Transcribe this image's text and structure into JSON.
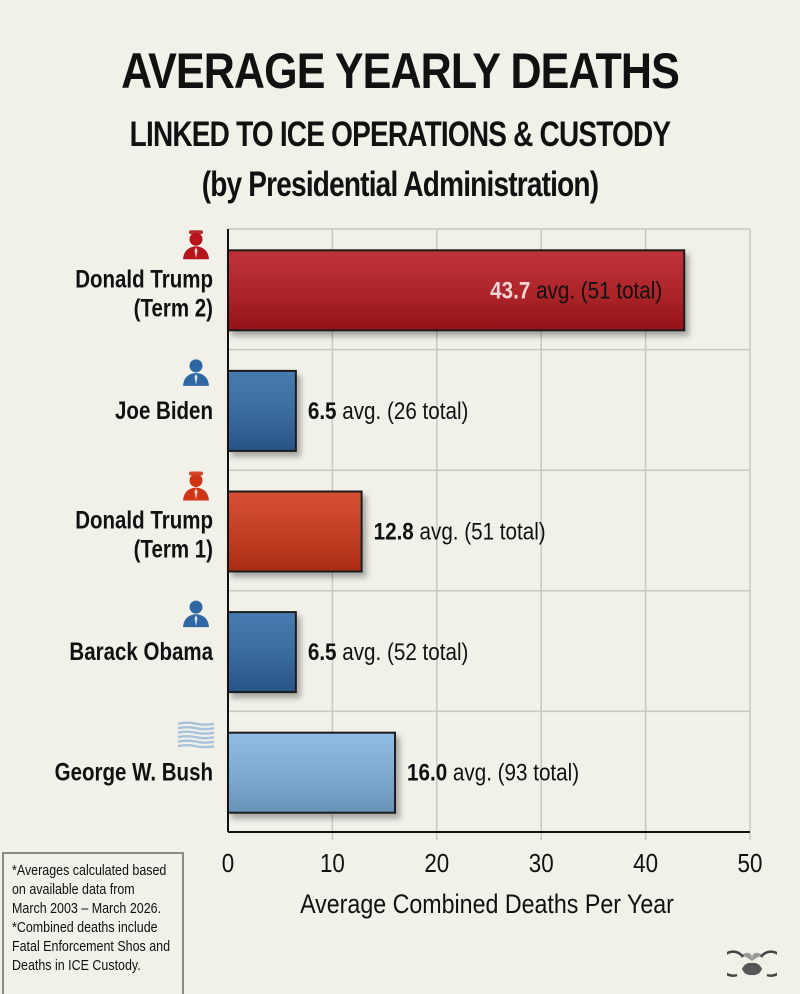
{
  "title": {
    "line1": "AVERAGE YEARLY DEATHS",
    "line2": "LINKED TO ICE OPERATIONS & CUSTODY",
    "line3": "(by Presidential Administration)"
  },
  "colors": {
    "background": "#f1f0e9",
    "trump_term2": "#b5141b",
    "biden": "#2f67a3",
    "trump_term1": "#cf3515",
    "obama": "#2f67a3",
    "bush": "#7fb2de",
    "grid": "#c9c8c0"
  },
  "chart_data": {
    "type": "bar",
    "orientation": "horizontal",
    "title": "AVERAGE YEARLY DEATHS LINKED TO ICE OPERATIONS & CUSTODY (by Presidential Administration)",
    "xlabel": "Average Combined Deaths Per Year",
    "ylabel": "",
    "xlim": [
      0,
      50
    ],
    "xticks": [
      "0",
      "10",
      "20",
      "30",
      "40",
      "50"
    ],
    "grid": true,
    "categories": [
      {
        "label_line1": "Donald Trump",
        "label_line2": "(Term 2)",
        "icon": "republican-person-icon",
        "value": 43.7,
        "value_text": "43.7",
        "suffix": " avg. (51 total)",
        "total": 51,
        "color": "#b5141b",
        "label_inside": true
      },
      {
        "label_line1": "Joe Biden",
        "label_line2": "",
        "icon": "democrat-person-icon",
        "value": 6.5,
        "value_text": "6.5",
        "suffix": " avg. (26 total)",
        "total": 26,
        "color": "#2f67a3",
        "label_inside": false
      },
      {
        "label_line1": "Donald Trump",
        "label_line2": "(Term 1)",
        "icon": "republican-person-icon",
        "value": 12.8,
        "value_text": "12.8",
        "suffix": " avg. (51 total)",
        "total": 51,
        "color": "#cf3515",
        "label_inside": false
      },
      {
        "label_line1": "Barack Obama",
        "label_line2": "",
        "icon": "democrat-person-icon",
        "value": 6.5,
        "value_text": "6.5",
        "suffix": " avg. (52 total)",
        "total": 52,
        "color": "#2f67a3",
        "label_inside": false
      },
      {
        "label_line1": "George W. Bush",
        "label_line2": "",
        "icon": "us-flag-icon",
        "value": 16.0,
        "value_text": "16.0",
        "suffix": " avg. (93 total)",
        "total": 93,
        "color": "#7fb2de",
        "label_inside": false
      }
    ]
  },
  "footnote": [
    "*Averages calculated based",
    "on available data from",
    "March 2003 – March 2026.",
    "*Combined deaths include",
    "Fatal Enforcement Shos and",
    "Deaths in ICE Custody."
  ]
}
